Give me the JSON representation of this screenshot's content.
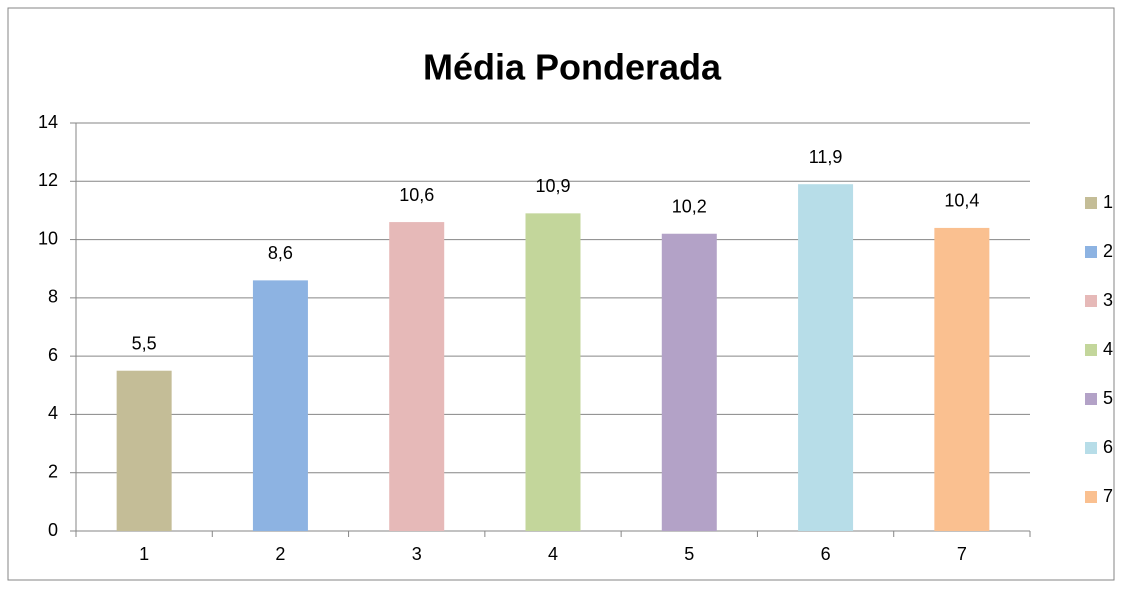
{
  "chart_data": {
    "type": "bar",
    "title": "Média Ponderada",
    "categories": [
      "1",
      "2",
      "3",
      "4",
      "5",
      "6",
      "7"
    ],
    "values": [
      5.5,
      8.6,
      10.6,
      10.9,
      10.2,
      11.9,
      10.4
    ],
    "value_labels": [
      "5,5",
      "8,6",
      "10,6",
      "10,9",
      "10,2",
      "11,9",
      "10,4"
    ],
    "colors": [
      "#c4bd97",
      "#8db3e2",
      "#e6b9b8",
      "#c3d69b",
      "#b3a2c7",
      "#b7dde8",
      "#fac090"
    ],
    "ylim": [
      0,
      14
    ],
    "yticks": [
      0,
      2,
      4,
      6,
      8,
      10,
      12,
      14
    ],
    "grid": true,
    "legend": "right"
  }
}
